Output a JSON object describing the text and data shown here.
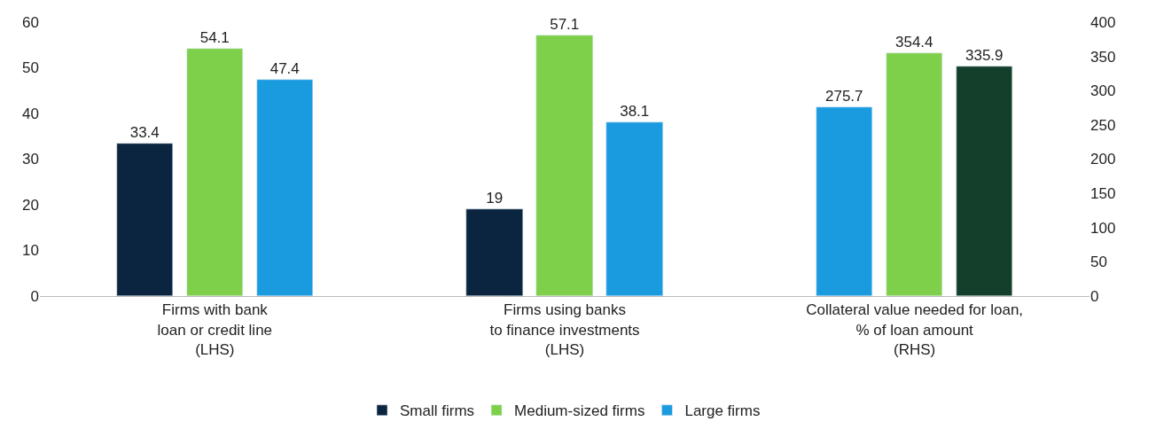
{
  "chart_data": {
    "type": "bar",
    "categories": [
      "Firms with bank\nloan or credit line\n(LHS)",
      "Firms using banks\nto finance investments\n(LHS)",
      "Collateral value needed for loan,\n% of loan amount\n(RHS)"
    ],
    "series": [
      {
        "name": "Small firms",
        "color": "#0b2540",
        "values": [
          33.4,
          19,
          null
        ]
      },
      {
        "name": "Medium-sized firms",
        "color": "#7ed04b",
        "values": [
          54.1,
          57.1,
          null
        ]
      },
      {
        "name": "Large firms",
        "color": "#1a9be0",
        "values": [
          47.4,
          38.1,
          null
        ]
      },
      {
        "color": "#1a9be0",
        "axis": "y2",
        "values": [
          null,
          null,
          275.7
        ]
      },
      {
        "color": "#7ed04b",
        "axis": "y2",
        "values": [
          null,
          null,
          354.4
        ]
      },
      {
        "color": "#14402b",
        "axis": "y2",
        "values": [
          null,
          null,
          335.9
        ]
      }
    ],
    "ylim": [
      0,
      60
    ],
    "yticks": [
      0,
      10,
      20,
      30,
      40,
      50,
      60
    ],
    "y2lim": [
      0,
      400
    ],
    "y2ticks": [
      0,
      50,
      100,
      150,
      200,
      250,
      300,
      350,
      400
    ],
    "data_labels": true,
    "legend": "bottom"
  }
}
